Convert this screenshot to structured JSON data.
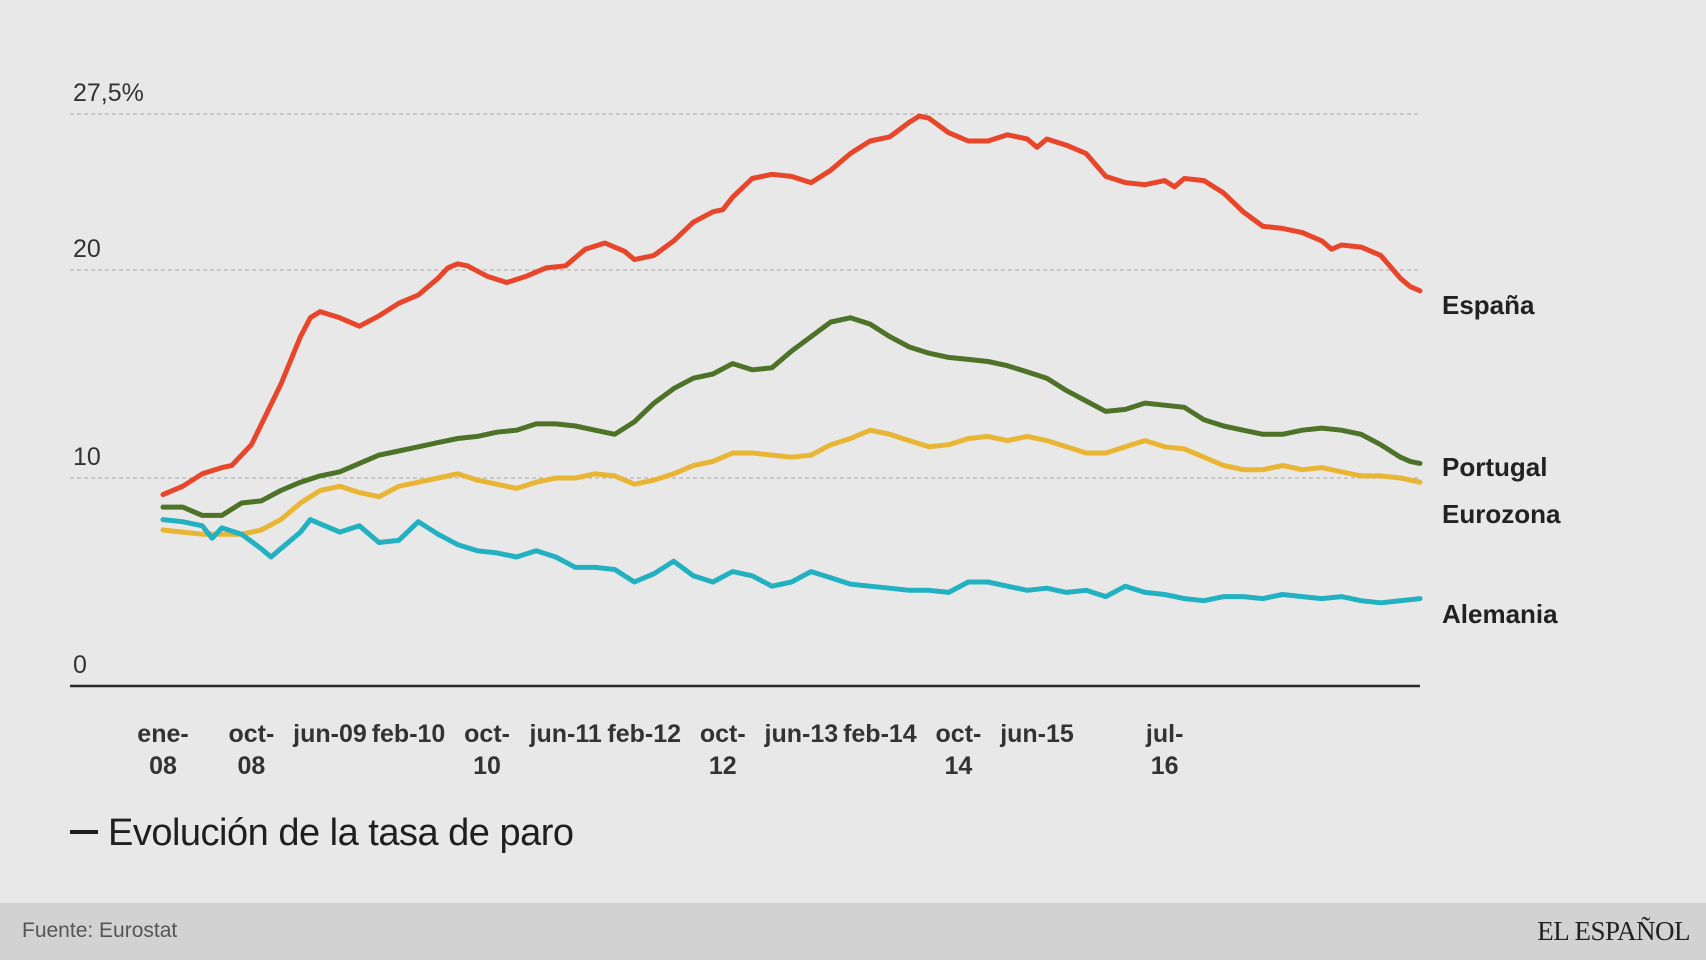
{
  "chart_data": {
    "type": "line",
    "title": "Evolución de la tasa de paro",
    "xlabel": "",
    "ylabel": "",
    "ylim": [
      0,
      27.5
    ],
    "y_ticks": [
      {
        "value": 0,
        "label": "0"
      },
      {
        "value": 10,
        "label": "10"
      },
      {
        "value": 20,
        "label": "20"
      },
      {
        "value": 27.5,
        "label": "27,5%"
      }
    ],
    "grid": true,
    "x_range": [
      "ene-08",
      "jul-16"
    ],
    "x_ticks": [
      {
        "month_index": 0,
        "label": "ene-\n08"
      },
      {
        "month_index": 9,
        "label": "oct-\n08"
      },
      {
        "month_index": 17,
        "label": "jun-09"
      },
      {
        "month_index": 25,
        "label": "feb-10"
      },
      {
        "month_index": 33,
        "label": "oct-\n10"
      },
      {
        "month_index": 41,
        "label": "jun-11"
      },
      {
        "month_index": 49,
        "label": "feb-12"
      },
      {
        "month_index": 57,
        "label": "oct-\n12"
      },
      {
        "month_index": 65,
        "label": "jun-13"
      },
      {
        "month_index": 73,
        "label": "feb-14"
      },
      {
        "month_index": 81,
        "label": "oct-\n14"
      },
      {
        "month_index": 89,
        "label": "jun-15"
      },
      {
        "month_index": 102,
        "label": "jul-\n16"
      }
    ],
    "series": [
      {
        "name": "España",
        "color": "#e8462a",
        "values": [
          [
            0,
            9.2
          ],
          [
            2,
            9.6
          ],
          [
            4,
            10.2
          ],
          [
            6,
            10.5
          ],
          [
            7,
            10.6
          ],
          [
            9,
            11.6
          ],
          [
            12,
            14.5
          ],
          [
            14,
            16.8
          ],
          [
            15,
            17.7
          ],
          [
            16,
            18.0
          ],
          [
            18,
            17.7
          ],
          [
            20,
            17.3
          ],
          [
            22,
            17.8
          ],
          [
            24,
            18.4
          ],
          [
            26,
            18.8
          ],
          [
            28,
            19.6
          ],
          [
            29,
            20.1
          ],
          [
            30,
            20.3
          ],
          [
            31,
            20.2
          ],
          [
            33,
            19.7
          ],
          [
            35,
            19.4
          ],
          [
            37,
            19.7
          ],
          [
            39,
            20.1
          ],
          [
            41,
            20.2
          ],
          [
            43,
            21.0
          ],
          [
            45,
            21.3
          ],
          [
            47,
            20.9
          ],
          [
            48,
            20.5
          ],
          [
            50,
            20.7
          ],
          [
            52,
            21.4
          ],
          [
            54,
            22.3
          ],
          [
            56,
            22.8
          ],
          [
            57,
            22.9
          ],
          [
            58,
            23.5
          ],
          [
            60,
            24.4
          ],
          [
            62,
            24.6
          ],
          [
            64,
            24.5
          ],
          [
            66,
            24.2
          ],
          [
            68,
            24.8
          ],
          [
            70,
            25.6
          ],
          [
            72,
            26.2
          ],
          [
            74,
            26.4
          ],
          [
            76,
            27.1
          ],
          [
            77,
            27.4
          ],
          [
            78,
            27.3
          ],
          [
            80,
            26.6
          ],
          [
            82,
            26.2
          ],
          [
            84,
            26.2
          ],
          [
            86,
            26.5
          ],
          [
            88,
            26.3
          ],
          [
            89,
            25.9
          ],
          [
            90,
            26.3
          ],
          [
            92,
            26.0
          ],
          [
            94,
            25.6
          ],
          [
            96,
            24.5
          ],
          [
            98,
            24.2
          ],
          [
            100,
            24.1
          ],
          [
            102,
            24.3
          ],
          [
            103,
            24.0
          ],
          [
            104,
            24.4
          ],
          [
            106,
            24.3
          ],
          [
            108,
            23.7
          ],
          [
            110,
            22.8
          ],
          [
            112,
            22.1
          ],
          [
            114,
            22.0
          ],
          [
            116,
            21.8
          ],
          [
            118,
            21.4
          ],
          [
            119,
            21.0
          ],
          [
            120,
            21.2
          ],
          [
            122,
            21.1
          ],
          [
            124,
            20.7
          ],
          [
            126,
            19.6
          ],
          [
            127,
            19.2
          ],
          [
            128,
            19.0
          ]
        ]
      },
      {
        "name": "Portugal",
        "color": "#4d7228",
        "values": [
          [
            0,
            8.6
          ],
          [
            2,
            8.6
          ],
          [
            4,
            8.2
          ],
          [
            6,
            8.2
          ],
          [
            8,
            8.8
          ],
          [
            10,
            8.9
          ],
          [
            12,
            9.4
          ],
          [
            14,
            9.8
          ],
          [
            16,
            10.1
          ],
          [
            18,
            10.3
          ],
          [
            20,
            10.7
          ],
          [
            22,
            11.1
          ],
          [
            24,
            11.3
          ],
          [
            26,
            11.5
          ],
          [
            28,
            11.7
          ],
          [
            30,
            11.9
          ],
          [
            32,
            12.0
          ],
          [
            34,
            12.2
          ],
          [
            36,
            12.3
          ],
          [
            38,
            12.6
          ],
          [
            40,
            12.6
          ],
          [
            42,
            12.5
          ],
          [
            44,
            12.3
          ],
          [
            46,
            12.1
          ],
          [
            48,
            12.7
          ],
          [
            50,
            13.6
          ],
          [
            52,
            14.3
          ],
          [
            54,
            14.8
          ],
          [
            56,
            15.0
          ],
          [
            58,
            15.5
          ],
          [
            60,
            15.2
          ],
          [
            62,
            15.3
          ],
          [
            64,
            16.1
          ],
          [
            66,
            16.8
          ],
          [
            68,
            17.5
          ],
          [
            70,
            17.7
          ],
          [
            72,
            17.4
          ],
          [
            74,
            16.8
          ],
          [
            76,
            16.3
          ],
          [
            78,
            16.0
          ],
          [
            80,
            15.8
          ],
          [
            82,
            15.7
          ],
          [
            84,
            15.6
          ],
          [
            86,
            15.4
          ],
          [
            88,
            15.1
          ],
          [
            90,
            14.8
          ],
          [
            92,
            14.2
          ],
          [
            94,
            13.7
          ],
          [
            96,
            13.2
          ],
          [
            98,
            13.3
          ],
          [
            100,
            13.6
          ],
          [
            102,
            13.5
          ],
          [
            104,
            13.4
          ],
          [
            106,
            12.8
          ],
          [
            108,
            12.5
          ],
          [
            110,
            12.3
          ],
          [
            112,
            12.1
          ],
          [
            114,
            12.1
          ],
          [
            116,
            12.3
          ],
          [
            118,
            12.4
          ],
          [
            120,
            12.3
          ],
          [
            122,
            12.1
          ],
          [
            124,
            11.6
          ],
          [
            126,
            11.0
          ],
          [
            127,
            10.8
          ],
          [
            128,
            10.7
          ]
        ]
      },
      {
        "name": "Eurozona",
        "color": "#e8b534",
        "values": [
          [
            0,
            7.5
          ],
          [
            2,
            7.4
          ],
          [
            4,
            7.3
          ],
          [
            6,
            7.3
          ],
          [
            8,
            7.3
          ],
          [
            10,
            7.5
          ],
          [
            12,
            8.0
          ],
          [
            14,
            8.8
          ],
          [
            16,
            9.4
          ],
          [
            18,
            9.6
          ],
          [
            20,
            9.3
          ],
          [
            22,
            9.1
          ],
          [
            24,
            9.6
          ],
          [
            26,
            9.8
          ],
          [
            28,
            10.0
          ],
          [
            30,
            10.2
          ],
          [
            32,
            9.9
          ],
          [
            34,
            9.7
          ],
          [
            36,
            9.5
          ],
          [
            38,
            9.8
          ],
          [
            40,
            10.0
          ],
          [
            42,
            10.0
          ],
          [
            44,
            10.2
          ],
          [
            46,
            10.1
          ],
          [
            48,
            9.7
          ],
          [
            50,
            9.9
          ],
          [
            52,
            10.2
          ],
          [
            54,
            10.6
          ],
          [
            56,
            10.8
          ],
          [
            58,
            11.2
          ],
          [
            60,
            11.2
          ],
          [
            62,
            11.1
          ],
          [
            64,
            11.0
          ],
          [
            66,
            11.1
          ],
          [
            68,
            11.6
          ],
          [
            70,
            11.9
          ],
          [
            72,
            12.3
          ],
          [
            74,
            12.1
          ],
          [
            76,
            11.8
          ],
          [
            78,
            11.5
          ],
          [
            80,
            11.6
          ],
          [
            82,
            11.9
          ],
          [
            84,
            12.0
          ],
          [
            86,
            11.8
          ],
          [
            88,
            12.0
          ],
          [
            90,
            11.8
          ],
          [
            92,
            11.5
          ],
          [
            94,
            11.2
          ],
          [
            96,
            11.2
          ],
          [
            98,
            11.5
          ],
          [
            100,
            11.8
          ],
          [
            102,
            11.5
          ],
          [
            104,
            11.4
          ],
          [
            106,
            11.0
          ],
          [
            108,
            10.6
          ],
          [
            110,
            10.4
          ],
          [
            112,
            10.4
          ],
          [
            114,
            10.6
          ],
          [
            116,
            10.4
          ],
          [
            118,
            10.5
          ],
          [
            120,
            10.3
          ],
          [
            122,
            10.1
          ],
          [
            124,
            10.1
          ],
          [
            126,
            10.0
          ],
          [
            128,
            9.8
          ]
        ]
      },
      {
        "name": "Alemania",
        "color": "#23b1c2",
        "values": [
          [
            0,
            8.0
          ],
          [
            2,
            7.9
          ],
          [
            4,
            7.7
          ],
          [
            5,
            7.1
          ],
          [
            6,
            7.6
          ],
          [
            8,
            7.3
          ],
          [
            10,
            6.6
          ],
          [
            11,
            6.2
          ],
          [
            12,
            6.6
          ],
          [
            14,
            7.4
          ],
          [
            15,
            8.0
          ],
          [
            16,
            7.8
          ],
          [
            18,
            7.4
          ],
          [
            20,
            7.7
          ],
          [
            22,
            6.9
          ],
          [
            24,
            7.0
          ],
          [
            26,
            7.9
          ],
          [
            28,
            7.3
          ],
          [
            30,
            6.8
          ],
          [
            32,
            6.5
          ],
          [
            34,
            6.4
          ],
          [
            36,
            6.2
          ],
          [
            38,
            6.5
          ],
          [
            40,
            6.2
          ],
          [
            42,
            5.7
          ],
          [
            44,
            5.7
          ],
          [
            46,
            5.6
          ],
          [
            48,
            5.0
          ],
          [
            50,
            5.4
          ],
          [
            52,
            6.0
          ],
          [
            54,
            5.3
          ],
          [
            56,
            5.0
          ],
          [
            58,
            5.5
          ],
          [
            60,
            5.3
          ],
          [
            62,
            4.8
          ],
          [
            64,
            5.0
          ],
          [
            66,
            5.5
          ],
          [
            68,
            5.2
          ],
          [
            70,
            4.9
          ],
          [
            72,
            4.8
          ],
          [
            74,
            4.7
          ],
          [
            76,
            4.6
          ],
          [
            78,
            4.6
          ],
          [
            80,
            4.5
          ],
          [
            82,
            5.0
          ],
          [
            84,
            5.0
          ],
          [
            86,
            4.8
          ],
          [
            88,
            4.6
          ],
          [
            90,
            4.7
          ],
          [
            92,
            4.5
          ],
          [
            94,
            4.6
          ],
          [
            96,
            4.3
          ],
          [
            98,
            4.8
          ],
          [
            100,
            4.5
          ],
          [
            102,
            4.4
          ],
          [
            104,
            4.2
          ],
          [
            106,
            4.1
          ],
          [
            108,
            4.3
          ],
          [
            110,
            4.3
          ],
          [
            112,
            4.2
          ],
          [
            114,
            4.4
          ],
          [
            116,
            4.3
          ],
          [
            118,
            4.2
          ],
          [
            120,
            4.3
          ],
          [
            122,
            4.1
          ],
          [
            124,
            4.0
          ],
          [
            126,
            4.1
          ],
          [
            128,
            4.2
          ]
        ]
      }
    ],
    "legend": {
      "placement": "right",
      "entries": [
        "España",
        "Portugal",
        "Eurozona",
        "Alemania"
      ]
    }
  },
  "subtitle": "Evolución de la tasa de paro",
  "footer": {
    "source": "Fuente: Eurostat",
    "logo_text": "EL ESPAÑOL"
  }
}
